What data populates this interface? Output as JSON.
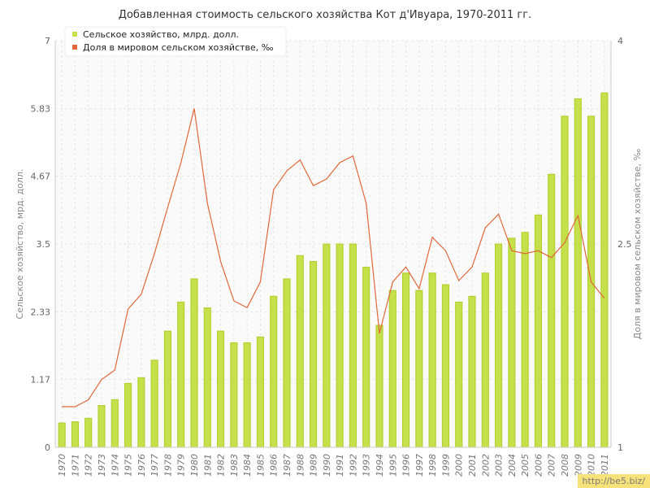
{
  "chart_data": {
    "type": "bar+line",
    "title": "Добавленная стоимость сельского хозяйства Кот д'Ивуара, 1970-2011 гг.",
    "ylabel_left": "Сельское хозяйство, мрд. долл.",
    "ylabel_right": "Доля в мировом сельском хозяйстве, ‰",
    "left_ticks": [
      "0",
      "1.17",
      "2.33",
      "3.5",
      "4.67",
      "5.83",
      "7"
    ],
    "right_ticks": [
      "1",
      "2.5",
      "4"
    ],
    "ylim_left": [
      0,
      7
    ],
    "ylim_right": [
      1,
      4
    ],
    "legend_position": "top-left",
    "grid": true,
    "categories": [
      "1970",
      "1971",
      "1972",
      "1973",
      "1974",
      "1975",
      "1976",
      "1977",
      "1978",
      "1979",
      "1980",
      "1981",
      "1982",
      "1983",
      "1984",
      "1985",
      "1986",
      "1987",
      "1988",
      "1989",
      "1990",
      "1991",
      "1992",
      "1993",
      "1994",
      "1995",
      "1996",
      "1997",
      "1998",
      "1999",
      "2000",
      "2001",
      "2002",
      "2003",
      "2004",
      "2005",
      "2006",
      "2007",
      "2008",
      "2009",
      "2010",
      "2011"
    ],
    "series": [
      {
        "name": "Сельское хозяйство, млрд. долл.",
        "type": "bar",
        "axis": "left",
        "color": "#c5e04a",
        "values": [
          0.42,
          0.44,
          0.5,
          0.72,
          0.82,
          1.1,
          1.2,
          1.5,
          2.0,
          2.5,
          2.9,
          2.4,
          2.0,
          1.8,
          1.8,
          1.9,
          2.6,
          2.9,
          3.3,
          3.2,
          3.5,
          3.5,
          3.5,
          3.1,
          2.1,
          2.7,
          3.0,
          2.7,
          3.0,
          2.8,
          2.5,
          2.6,
          3.0,
          3.5,
          3.6,
          3.7,
          4.0,
          4.7,
          5.7,
          6.0,
          5.7,
          6.1
        ]
      },
      {
        "name": "Доля в мировом сельском хозяйстве, ‰",
        "type": "line",
        "axis": "right",
        "color": "#e1683a",
        "values": [
          1.3,
          1.3,
          1.35,
          1.5,
          1.57,
          2.02,
          2.13,
          2.43,
          2.77,
          3.1,
          3.5,
          2.8,
          2.37,
          2.08,
          2.03,
          2.22,
          2.9,
          3.04,
          3.12,
          2.93,
          2.98,
          3.1,
          3.15,
          2.8,
          1.84,
          2.22,
          2.33,
          2.17,
          2.55,
          2.45,
          2.23,
          2.33,
          2.62,
          2.72,
          2.45,
          2.43,
          2.45,
          2.4,
          2.51,
          2.71,
          2.22,
          2.1
        ]
      }
    ]
  },
  "watermark": "http://be5.biz/"
}
